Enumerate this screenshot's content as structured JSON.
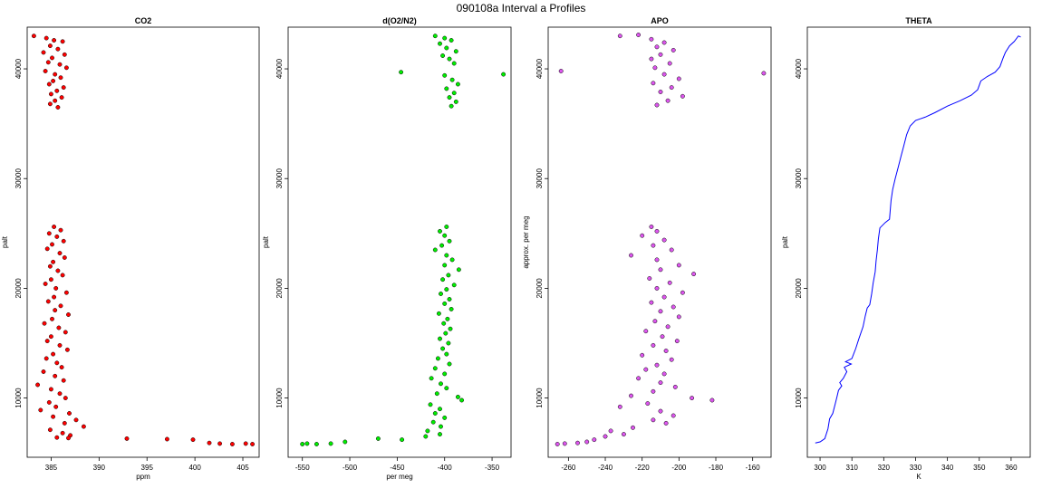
{
  "figure": {
    "title": "090108a   Interval a Profiles"
  },
  "colors": {
    "CO2": "#ff0000",
    "O2N2": "#00ee00",
    "APO": "#dd55ee",
    "THETA": "#0000ff",
    "point_outline": "#000000"
  },
  "chart_data": [
    {
      "id": "co2",
      "type": "scatter",
      "title": "CO2",
      "xlabel": "ppm",
      "ylabel": "palt",
      "xlim": [
        382.5,
        406.7
      ],
      "ylim": [
        4600,
        43800
      ],
      "xticks": [
        385,
        390,
        395,
        400,
        405
      ],
      "yticks": [
        10000,
        20000,
        30000,
        40000
      ],
      "color_key": "CO2",
      "points": [
        [
          383.2,
          43000
        ],
        [
          384.5,
          42800
        ],
        [
          385.3,
          42600
        ],
        [
          386.2,
          42500
        ],
        [
          384.9,
          42100
        ],
        [
          385.7,
          41800
        ],
        [
          384.2,
          41500
        ],
        [
          386.4,
          41300
        ],
        [
          385.1,
          41000
        ],
        [
          384.7,
          40600
        ],
        [
          385.9,
          40400
        ],
        [
          386.6,
          40100
        ],
        [
          384.4,
          39800
        ],
        [
          385.4,
          39500
        ],
        [
          386.0,
          39200
        ],
        [
          385.2,
          38900
        ],
        [
          384.8,
          38600
        ],
        [
          386.3,
          38300
        ],
        [
          385.6,
          38000
        ],
        [
          385.0,
          37700
        ],
        [
          386.1,
          37400
        ],
        [
          385.4,
          37100
        ],
        [
          384.9,
          36800
        ],
        [
          385.7,
          36500
        ],
        [
          385.3,
          25600
        ],
        [
          386.0,
          25300
        ],
        [
          384.8,
          25000
        ],
        [
          385.6,
          24700
        ],
        [
          386.3,
          24300
        ],
        [
          385.1,
          24000
        ],
        [
          384.6,
          23600
        ],
        [
          385.9,
          23200
        ],
        [
          386.4,
          22800
        ],
        [
          385.2,
          22400
        ],
        [
          384.9,
          22000
        ],
        [
          385.7,
          21600
        ],
        [
          386.2,
          21200
        ],
        [
          385.0,
          20800
        ],
        [
          384.4,
          20400
        ],
        [
          385.5,
          20000
        ],
        [
          386.6,
          19600
        ],
        [
          385.3,
          19200
        ],
        [
          384.7,
          18800
        ],
        [
          386.0,
          18400
        ],
        [
          385.4,
          18000
        ],
        [
          386.8,
          17600
        ],
        [
          385.1,
          17200
        ],
        [
          384.3,
          16800
        ],
        [
          385.8,
          16400
        ],
        [
          386.5,
          16000
        ],
        [
          385.0,
          15600
        ],
        [
          384.6,
          15200
        ],
        [
          385.9,
          14800
        ],
        [
          386.7,
          14400
        ],
        [
          385.2,
          14000
        ],
        [
          384.5,
          13600
        ],
        [
          385.6,
          13200
        ],
        [
          386.1,
          12800
        ],
        [
          384.2,
          12400
        ],
        [
          385.4,
          12000
        ],
        [
          386.3,
          11600
        ],
        [
          383.6,
          11200
        ],
        [
          385.0,
          10800
        ],
        [
          385.9,
          10400
        ],
        [
          386.5,
          10000
        ],
        [
          384.8,
          9600
        ],
        [
          385.5,
          9200
        ],
        [
          383.9,
          8900
        ],
        [
          386.9,
          8600
        ],
        [
          385.2,
          8300
        ],
        [
          387.6,
          8000
        ],
        [
          386.4,
          7700
        ],
        [
          388.4,
          7400
        ],
        [
          384.9,
          7100
        ],
        [
          386.2,
          6800
        ],
        [
          387.0,
          6600
        ],
        [
          385.6,
          6400
        ],
        [
          386.8,
          6350
        ],
        [
          392.9,
          6300
        ],
        [
          397.1,
          6250
        ],
        [
          399.8,
          6200
        ],
        [
          401.5,
          5900
        ],
        [
          402.6,
          5850
        ],
        [
          403.9,
          5800
        ],
        [
          405.3,
          5850
        ],
        [
          406.0,
          5800
        ]
      ]
    },
    {
      "id": "o2n2",
      "type": "scatter",
      "title": "d(O2/N2)",
      "xlabel": "per meg",
      "ylabel": "palt",
      "xlim": [
        -565,
        -330
      ],
      "ylim": [
        4600,
        43800
      ],
      "xticks": [
        -550,
        -500,
        -450,
        -400,
        -350
      ],
      "yticks": [
        10000,
        20000,
        30000,
        40000
      ],
      "color_key": "O2N2",
      "points": [
        [
          -410,
          43000
        ],
        [
          -400,
          42800
        ],
        [
          -393,
          42600
        ],
        [
          -405,
          42300
        ],
        [
          -398,
          41900
        ],
        [
          -388,
          41600
        ],
        [
          -402,
          41200
        ],
        [
          -395,
          40900
        ],
        [
          -390,
          40500
        ],
        [
          -446,
          39700
        ],
        [
          -338,
          39500
        ],
        [
          -400,
          39400
        ],
        [
          -392,
          39000
        ],
        [
          -386,
          38600
        ],
        [
          -398,
          38200
        ],
        [
          -390,
          37800
        ],
        [
          -395,
          37400
        ],
        [
          -388,
          37000
        ],
        [
          -393,
          36600
        ],
        [
          -398,
          25600
        ],
        [
          -405,
          25200
        ],
        [
          -400,
          24800
        ],
        [
          -395,
          24300
        ],
        [
          -403,
          23900
        ],
        [
          -410,
          23500
        ],
        [
          -398,
          23000
        ],
        [
          -392,
          22600
        ],
        [
          -400,
          22100
        ],
        [
          -385,
          21700
        ],
        [
          -396,
          21200
        ],
        [
          -402,
          20800
        ],
        [
          -390,
          20300
        ],
        [
          -398,
          19900
        ],
        [
          -404,
          19500
        ],
        [
          -395,
          19000
        ],
        [
          -400,
          18600
        ],
        [
          -393,
          18100
        ],
        [
          -406,
          17700
        ],
        [
          -397,
          17200
        ],
        [
          -401,
          16800
        ],
        [
          -394,
          16300
        ],
        [
          -399,
          15900
        ],
        [
          -405,
          15400
        ],
        [
          -396,
          15000
        ],
        [
          -402,
          14500
        ],
        [
          -398,
          14000
        ],
        [
          -407,
          13600
        ],
        [
          -395,
          13100
        ],
        [
          -410,
          12700
        ],
        [
          -400,
          12200
        ],
        [
          -414,
          11800
        ],
        [
          -404,
          11300
        ],
        [
          -398,
          10900
        ],
        [
          -408,
          10400
        ],
        [
          -386,
          10100
        ],
        [
          -382,
          9800
        ],
        [
          -415,
          9400
        ],
        [
          -405,
          9000
        ],
        [
          -410,
          8600
        ],
        [
          -400,
          8200
        ],
        [
          -412,
          7800
        ],
        [
          -404,
          7400
        ],
        [
          -418,
          7000
        ],
        [
          -405,
          6700
        ],
        [
          -420,
          6500
        ],
        [
          -470,
          6300
        ],
        [
          -445,
          6200
        ],
        [
          -505,
          6000
        ],
        [
          -520,
          5850
        ],
        [
          -535,
          5800
        ],
        [
          -545,
          5850
        ],
        [
          -550,
          5800
        ]
      ]
    },
    {
      "id": "apo",
      "type": "scatter",
      "title": "APO",
      "xlabel": "",
      "ylabel": "approx. per meg",
      "xlim": [
        -271,
        -150
      ],
      "ylim": [
        4600,
        43800
      ],
      "xticks": [
        -260,
        -240,
        -220,
        -200,
        -180,
        -160
      ],
      "yticks": [
        10000,
        20000,
        30000,
        40000
      ],
      "color_key": "APO",
      "points": [
        [
          -232,
          43000
        ],
        [
          -222,
          43100
        ],
        [
          -215,
          42700
        ],
        [
          -208,
          42400
        ],
        [
          -212,
          42000
        ],
        [
          -203,
          41700
        ],
        [
          -210,
          41300
        ],
        [
          -215,
          40900
        ],
        [
          -205,
          40500
        ],
        [
          -213,
          40100
        ],
        [
          -264,
          39800
        ],
        [
          -154,
          39600
        ],
        [
          -208,
          39500
        ],
        [
          -200,
          39100
        ],
        [
          -214,
          38700
        ],
        [
          -204,
          38300
        ],
        [
          -210,
          37900
        ],
        [
          -198,
          37500
        ],
        [
          -206,
          37100
        ],
        [
          -212,
          36700
        ],
        [
          -215,
          25600
        ],
        [
          -212,
          25200
        ],
        [
          -220,
          24800
        ],
        [
          -208,
          24400
        ],
        [
          -214,
          23900
        ],
        [
          -204,
          23500
        ],
        [
          -226,
          23000
        ],
        [
          -212,
          22600
        ],
        [
          -200,
          22100
        ],
        [
          -210,
          21700
        ],
        [
          -192,
          21300
        ],
        [
          -216,
          20900
        ],
        [
          -205,
          20500
        ],
        [
          -212,
          20000
        ],
        [
          -198,
          19600
        ],
        [
          -208,
          19200
        ],
        [
          -215,
          18700
        ],
        [
          -203,
          18300
        ],
        [
          -210,
          17900
        ],
        [
          -200,
          17400
        ],
        [
          -213,
          17000
        ],
        [
          -206,
          16500
        ],
        [
          -218,
          16100
        ],
        [
          -209,
          15600
        ],
        [
          -201,
          15200
        ],
        [
          -214,
          14800
        ],
        [
          -207,
          14300
        ],
        [
          -220,
          13900
        ],
        [
          -204,
          13500
        ],
        [
          -212,
          13000
        ],
        [
          -218,
          12600
        ],
        [
          -208,
          12200
        ],
        [
          -222,
          11800
        ],
        [
          -210,
          11400
        ],
        [
          -202,
          11000
        ],
        [
          -214,
          10600
        ],
        [
          -226,
          10200
        ],
        [
          -193,
          10000
        ],
        [
          -182,
          9800
        ],
        [
          -217,
          9500
        ],
        [
          -232,
          9200
        ],
        [
          -210,
          8800
        ],
        [
          -203,
          8400
        ],
        [
          -214,
          8000
        ],
        [
          -207,
          7700
        ],
        [
          -225,
          7300
        ],
        [
          -237,
          7000
        ],
        [
          -230,
          6700
        ],
        [
          -240,
          6500
        ],
        [
          -246,
          6200
        ],
        [
          -250,
          6000
        ],
        [
          -255,
          5900
        ],
        [
          -262,
          5850
        ],
        [
          -266,
          5800
        ]
      ]
    },
    {
      "id": "theta",
      "type": "line",
      "title": "THETA",
      "xlabel": "K",
      "ylabel": "palt",
      "xlim": [
        296,
        366
      ],
      "ylim": [
        4600,
        43800
      ],
      "xticks": [
        300,
        310,
        320,
        330,
        340,
        350,
        360
      ],
      "yticks": [
        10000,
        20000,
        30000,
        40000
      ],
      "color_key": "THETA",
      "points": [
        [
          298.5,
          5900
        ],
        [
          300.0,
          6000
        ],
        [
          301.5,
          6300
        ],
        [
          302.5,
          7200
        ],
        [
          303.0,
          8100
        ],
        [
          304.0,
          8600
        ],
        [
          304.8,
          9500
        ],
        [
          305.3,
          10100
        ],
        [
          305.8,
          10700
        ],
        [
          306.8,
          11100
        ],
        [
          306.2,
          11400
        ],
        [
          307.3,
          11800
        ],
        [
          308.4,
          12400
        ],
        [
          307.6,
          12800
        ],
        [
          309.8,
          13100
        ],
        [
          308.0,
          13300
        ],
        [
          310.0,
          13600
        ],
        [
          311.2,
          14500
        ],
        [
          312.3,
          15500
        ],
        [
          313.5,
          16500
        ],
        [
          314.2,
          17500
        ],
        [
          314.8,
          18200
        ],
        [
          315.6,
          18500
        ],
        [
          316.2,
          19500
        ],
        [
          316.7,
          20500
        ],
        [
          317.3,
          21500
        ],
        [
          317.6,
          22500
        ],
        [
          318.0,
          23500
        ],
        [
          318.3,
          24500
        ],
        [
          318.8,
          25500
        ],
        [
          320.5,
          26000
        ],
        [
          321.8,
          26300
        ],
        [
          322.0,
          27000
        ],
        [
          322.3,
          28000
        ],
        [
          322.8,
          29000
        ],
        [
          323.6,
          30000
        ],
        [
          324.5,
          31000
        ],
        [
          325.4,
          32000
        ],
        [
          326.3,
          33000
        ],
        [
          327.2,
          34000
        ],
        [
          328.3,
          34800
        ],
        [
          330.0,
          35300
        ],
        [
          333.0,
          35600
        ],
        [
          336.0,
          36000
        ],
        [
          340.0,
          36600
        ],
        [
          344.0,
          37100
        ],
        [
          347.5,
          37600
        ],
        [
          349.5,
          38100
        ],
        [
          350.5,
          38900
        ],
        [
          352.5,
          39300
        ],
        [
          355.0,
          39700
        ],
        [
          356.5,
          40200
        ],
        [
          357.5,
          41000
        ],
        [
          358.2,
          41500
        ],
        [
          359.5,
          42100
        ],
        [
          361.0,
          42500
        ],
        [
          362.3,
          43000
        ],
        [
          363.0,
          42900
        ]
      ]
    }
  ]
}
